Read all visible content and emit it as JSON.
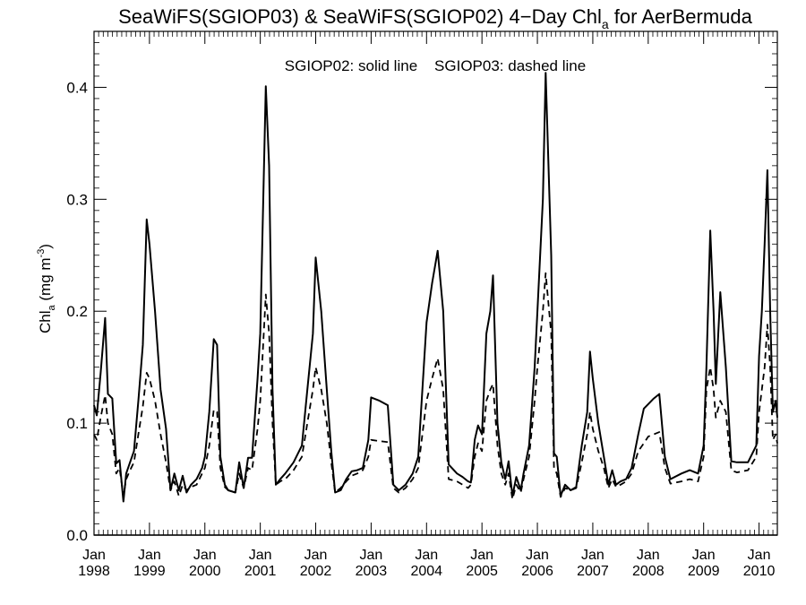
{
  "chart_data": {
    "type": "line",
    "title": {
      "main": "SeaWiFS(SGIOP03) & SeaWiFS(SGIOP02) 4−Day Chl",
      "sub": "a",
      "tail": " for AerBermuda"
    },
    "annotation": "SGIOP02: solid line    SGIOP03: dashed line",
    "ylabel": {
      "base": "Chl",
      "sub": "a",
      "unit": " (mg m",
      "sup": "-3",
      "close": ")"
    },
    "xlim": [
      1998.0,
      2010.33
    ],
    "ylim": [
      0.0,
      0.45
    ],
    "yticks": [
      0.0,
      0.1,
      0.2,
      0.3,
      0.4
    ],
    "ytick_labels": [
      "0.0",
      "0.1",
      "0.2",
      "0.3",
      "0.4"
    ],
    "xticks": [
      1998,
      1999,
      2000,
      2001,
      2002,
      2003,
      2004,
      2005,
      2006,
      2007,
      2008,
      2009,
      2010
    ],
    "xtick_month": "Jan",
    "xtick_years": [
      "1998",
      "1999",
      "2000",
      "2001",
      "2002",
      "2003",
      "2004",
      "2005",
      "2006",
      "2007",
      "2008",
      "2009",
      "2010"
    ],
    "grid": false,
    "series": [
      {
        "name": "SGIOP02",
        "style": "solid",
        "color": "#000000",
        "x": [
          1998.0,
          1998.05,
          1998.12,
          1998.2,
          1998.25,
          1998.33,
          1998.4,
          1998.46,
          1998.53,
          1998.58,
          1998.65,
          1998.72,
          1998.8,
          1998.88,
          1998.95,
          1999.0,
          1999.1,
          1999.2,
          1999.3,
          1999.38,
          1999.45,
          1999.53,
          1999.6,
          1999.67,
          1999.75,
          1999.85,
          1999.95,
          2000.0,
          2000.08,
          2000.16,
          2000.22,
          2000.28,
          2000.36,
          2000.42,
          2000.55,
          2000.62,
          2000.7,
          2000.78,
          2000.85,
          2000.95,
          2001.0,
          2001.1,
          2001.16,
          2001.22,
          2001.28,
          2001.36,
          2001.45,
          2001.6,
          2001.75,
          2001.85,
          2001.95,
          2002.0,
          2002.1,
          2002.2,
          2002.28,
          2002.35,
          2002.45,
          2002.55,
          2002.65,
          2002.75,
          2002.85,
          2002.95,
          2003.0,
          2003.15,
          2003.3,
          2003.4,
          2003.5,
          2003.62,
          2003.75,
          2003.85,
          2003.95,
          2004.0,
          2004.1,
          2004.2,
          2004.3,
          2004.4,
          2004.55,
          2004.65,
          2004.75,
          2004.8,
          2004.87,
          2004.93,
          2005.0,
          2005.08,
          2005.15,
          2005.2,
          2005.28,
          2005.35,
          2005.42,
          2005.48,
          2005.55,
          2005.62,
          2005.7,
          2005.75,
          2005.85,
          2005.95,
          2006.0,
          2006.1,
          2006.15,
          2006.25,
          2006.3,
          2006.35,
          2006.42,
          2006.5,
          2006.6,
          2006.7,
          2006.8,
          2006.9,
          2006.95,
          2007.0,
          2007.1,
          2007.2,
          2007.28,
          2007.35,
          2007.42,
          2007.5,
          2007.6,
          2007.7,
          2007.82,
          2007.92,
          2008.0,
          2008.1,
          2008.2,
          2008.3,
          2008.4,
          2008.6,
          2008.75,
          2008.9,
          2009.0,
          2009.05,
          2009.12,
          2009.18,
          2009.22,
          2009.3,
          2009.4,
          2009.5,
          2009.6,
          2009.8,
          2009.95,
          2010.0,
          2010.05,
          2010.1,
          2010.15,
          2010.2,
          2010.25,
          2010.3,
          2010.33
        ],
        "y": [
          0.116,
          0.107,
          0.145,
          0.194,
          0.126,
          0.122,
          0.064,
          0.067,
          0.03,
          0.055,
          0.065,
          0.075,
          0.12,
          0.17,
          0.282,
          0.26,
          0.2,
          0.13,
          0.095,
          0.04,
          0.055,
          0.04,
          0.053,
          0.038,
          0.045,
          0.05,
          0.06,
          0.07,
          0.11,
          0.175,
          0.17,
          0.07,
          0.045,
          0.04,
          0.038,
          0.065,
          0.042,
          0.069,
          0.069,
          0.14,
          0.18,
          0.401,
          0.33,
          0.13,
          0.045,
          0.05,
          0.055,
          0.065,
          0.08,
          0.13,
          0.18,
          0.248,
          0.2,
          0.13,
          0.075,
          0.038,
          0.04,
          0.05,
          0.057,
          0.058,
          0.06,
          0.085,
          0.123,
          0.12,
          0.116,
          0.045,
          0.04,
          0.045,
          0.055,
          0.07,
          0.15,
          0.19,
          0.225,
          0.254,
          0.2,
          0.063,
          0.055,
          0.052,
          0.048,
          0.047,
          0.085,
          0.098,
          0.09,
          0.18,
          0.2,
          0.232,
          0.1,
          0.065,
          0.05,
          0.066,
          0.035,
          0.052,
          0.04,
          0.055,
          0.08,
          0.15,
          0.2,
          0.3,
          0.413,
          0.25,
          0.073,
          0.07,
          0.035,
          0.045,
          0.04,
          0.043,
          0.08,
          0.11,
          0.164,
          0.14,
          0.1,
          0.07,
          0.045,
          0.058,
          0.045,
          0.048,
          0.05,
          0.06,
          0.09,
          0.113,
          0.117,
          0.122,
          0.126,
          0.07,
          0.05,
          0.055,
          0.058,
          0.055,
          0.08,
          0.15,
          0.272,
          0.2,
          0.135,
          0.217,
          0.15,
          0.066,
          0.065,
          0.065,
          0.08,
          0.16,
          0.2,
          0.26,
          0.326,
          0.2,
          0.11,
          0.12,
          0.105
        ]
      },
      {
        "name": "SGIOP03",
        "style": "dashed",
        "color": "#000000",
        "x": [
          1998.0,
          1998.05,
          1998.12,
          1998.2,
          1998.25,
          1998.33,
          1998.4,
          1998.46,
          1998.53,
          1998.58,
          1998.65,
          1998.72,
          1998.8,
          1998.88,
          1998.95,
          1999.0,
          1999.1,
          1999.2,
          1999.3,
          1999.38,
          1999.45,
          1999.53,
          1999.6,
          1999.67,
          1999.75,
          1999.85,
          1999.95,
          2000.0,
          2000.08,
          2000.16,
          2000.22,
          2000.28,
          2000.36,
          2000.42,
          2000.55,
          2000.62,
          2000.7,
          2000.78,
          2000.85,
          2000.95,
          2001.0,
          2001.1,
          2001.16,
          2001.22,
          2001.28,
          2001.36,
          2001.45,
          2001.6,
          2001.75,
          2001.85,
          2001.95,
          2002.0,
          2002.1,
          2002.2,
          2002.28,
          2002.35,
          2002.45,
          2002.55,
          2002.65,
          2002.75,
          2002.85,
          2002.95,
          2003.0,
          2003.15,
          2003.3,
          2003.4,
          2003.5,
          2003.62,
          2003.75,
          2003.85,
          2003.95,
          2004.0,
          2004.1,
          2004.2,
          2004.3,
          2004.4,
          2004.55,
          2004.65,
          2004.75,
          2004.8,
          2004.87,
          2004.93,
          2005.0,
          2005.08,
          2005.15,
          2005.2,
          2005.28,
          2005.35,
          2005.42,
          2005.48,
          2005.55,
          2005.62,
          2005.7,
          2005.75,
          2005.85,
          2005.95,
          2006.0,
          2006.1,
          2006.15,
          2006.25,
          2006.3,
          2006.35,
          2006.42,
          2006.5,
          2006.6,
          2006.7,
          2006.8,
          2006.9,
          2006.95,
          2007.0,
          2007.1,
          2007.2,
          2007.28,
          2007.35,
          2007.42,
          2007.5,
          2007.6,
          2007.7,
          2007.82,
          2007.92,
          2008.0,
          2008.1,
          2008.2,
          2008.3,
          2008.4,
          2008.6,
          2008.75,
          2008.9,
          2009.0,
          2009.05,
          2009.12,
          2009.18,
          2009.22,
          2009.3,
          2009.4,
          2009.5,
          2009.6,
          2009.8,
          2009.95,
          2010.0,
          2010.05,
          2010.1,
          2010.15,
          2010.2,
          2010.25,
          2010.3,
          2010.33
        ],
        "y": [
          0.09,
          0.085,
          0.105,
          0.125,
          0.1,
          0.09,
          0.055,
          0.06,
          0.035,
          0.05,
          0.058,
          0.065,
          0.09,
          0.115,
          0.145,
          0.14,
          0.12,
          0.09,
          0.065,
          0.04,
          0.048,
          0.035,
          0.045,
          0.04,
          0.043,
          0.045,
          0.055,
          0.06,
          0.08,
          0.112,
          0.11,
          0.06,
          0.043,
          0.04,
          0.038,
          0.055,
          0.042,
          0.06,
          0.058,
          0.095,
          0.12,
          0.215,
          0.18,
          0.1,
          0.045,
          0.048,
          0.05,
          0.058,
          0.07,
          0.1,
          0.13,
          0.15,
          0.13,
          0.1,
          0.065,
          0.038,
          0.042,
          0.048,
          0.053,
          0.055,
          0.058,
          0.07,
          0.085,
          0.084,
          0.083,
          0.042,
          0.038,
          0.042,
          0.05,
          0.06,
          0.1,
          0.12,
          0.14,
          0.158,
          0.13,
          0.05,
          0.048,
          0.045,
          0.042,
          0.045,
          0.07,
          0.082,
          0.075,
          0.12,
          0.13,
          0.135,
          0.08,
          0.055,
          0.045,
          0.055,
          0.032,
          0.045,
          0.038,
          0.05,
          0.07,
          0.12,
          0.15,
          0.2,
          0.234,
          0.18,
          0.06,
          0.055,
          0.034,
          0.042,
          0.04,
          0.042,
          0.065,
          0.09,
          0.11,
          0.095,
          0.075,
          0.06,
          0.042,
          0.05,
          0.043,
          0.045,
          0.048,
          0.055,
          0.075,
          0.082,
          0.088,
          0.09,
          0.092,
          0.06,
          0.046,
          0.048,
          0.05,
          0.048,
          0.07,
          0.13,
          0.15,
          0.13,
          0.105,
          0.12,
          0.11,
          0.058,
          0.056,
          0.058,
          0.07,
          0.11,
          0.13,
          0.15,
          0.188,
          0.15,
          0.085,
          0.09,
          0.082
        ]
      }
    ]
  }
}
